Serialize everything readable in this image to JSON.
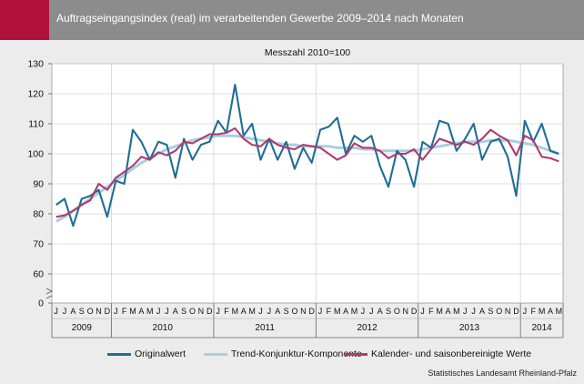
{
  "header": {
    "title": "Auftragseingangsindex (real) im verarbeitenden Gewerbe 2009–2014 nach Monaten"
  },
  "colors": {
    "accent": "#b0123c",
    "header_bg": "#8c8c8c"
  },
  "source": "Statistisches Landesamt Rheinland-Pfalz",
  "chart_data": {
    "type": "line",
    "subtitle": "Messzahl 2010=100",
    "ylim": [
      0,
      130
    ],
    "y_ticks": [
      0,
      60,
      70,
      80,
      90,
      100,
      110,
      120,
      130
    ],
    "y_axis_break": true,
    "grid": true,
    "x": [
      "J",
      "J",
      "A",
      "S",
      "O",
      "N",
      "D",
      "J",
      "F",
      "M",
      "A",
      "M",
      "J",
      "J",
      "A",
      "S",
      "O",
      "N",
      "D",
      "J",
      "F",
      "M",
      "A",
      "M",
      "J",
      "J",
      "A",
      "S",
      "O",
      "N",
      "D",
      "J",
      "F",
      "M",
      "A",
      "M",
      "J",
      "J",
      "A",
      "S",
      "O",
      "N",
      "D",
      "J",
      "F",
      "M",
      "A",
      "M",
      "J",
      "J",
      "A",
      "S",
      "O",
      "N",
      "D",
      "J",
      "F",
      "M",
      "A",
      "M"
    ],
    "years": [
      {
        "label": "2009",
        "months": 7
      },
      {
        "label": "2010",
        "months": 12
      },
      {
        "label": "2011",
        "months": 12
      },
      {
        "label": "2012",
        "months": 12
      },
      {
        "label": "2013",
        "months": 12
      },
      {
        "label": "2014",
        "months": 5
      }
    ],
    "legend_position": "bottom",
    "series": [
      {
        "name": "Originalwert",
        "color": "#1f6e95",
        "values": [
          83,
          85,
          76,
          85,
          86,
          88,
          79,
          91,
          90,
          108,
          104,
          98,
          104,
          103,
          92,
          105,
          98,
          103,
          104,
          111,
          107,
          123,
          106,
          110,
          98,
          105,
          98,
          104,
          95,
          102,
          97,
          108,
          109,
          112,
          100,
          106,
          104,
          106,
          96,
          89,
          101,
          98,
          89,
          104,
          102,
          111,
          110,
          101,
          105,
          110,
          98,
          104,
          105,
          99,
          86,
          111,
          104,
          110,
          101,
          100
        ]
      },
      {
        "name": "Trend-Konjunktur-Komponente",
        "color": "#a8cfe0",
        "values": [
          77.5,
          79,
          81,
          83,
          85,
          87,
          89,
          91,
          93,
          95,
          97,
          98.5,
          100,
          101.5,
          102.5,
          103.5,
          104.5,
          105,
          105.5,
          106,
          106,
          106,
          105.5,
          105,
          104.5,
          104,
          103.5,
          103,
          103,
          102.5,
          102.5,
          102.5,
          102.5,
          102,
          102,
          102,
          101.5,
          101.5,
          101,
          101,
          101,
          101,
          101,
          101.5,
          102,
          102.5,
          103,
          103.5,
          104,
          104,
          104,
          104.5,
          104.5,
          104.5,
          104,
          103.5,
          103,
          102,
          101,
          100
        ]
      },
      {
        "name": "Kalender- und saisonbereinigte Werte",
        "color": "#b03a6e",
        "values": [
          79,
          79.5,
          81,
          83,
          84.5,
          90,
          88,
          92,
          94,
          96,
          99,
          98,
          100.5,
          99.5,
          101,
          104,
          103.5,
          105,
          106.5,
          106.5,
          107,
          108.5,
          105,
          103,
          102.5,
          105,
          103,
          102,
          101.5,
          103,
          102.5,
          102,
          100,
          98,
          99.5,
          103.5,
          102,
          102,
          101,
          98.5,
          100,
          100,
          101.5,
          98,
          101.5,
          105,
          104,
          103,
          104,
          103,
          105,
          108,
          106,
          104.5,
          99.5,
          106,
          104.5,
          99,
          98.5,
          97.5
        ]
      }
    ]
  }
}
